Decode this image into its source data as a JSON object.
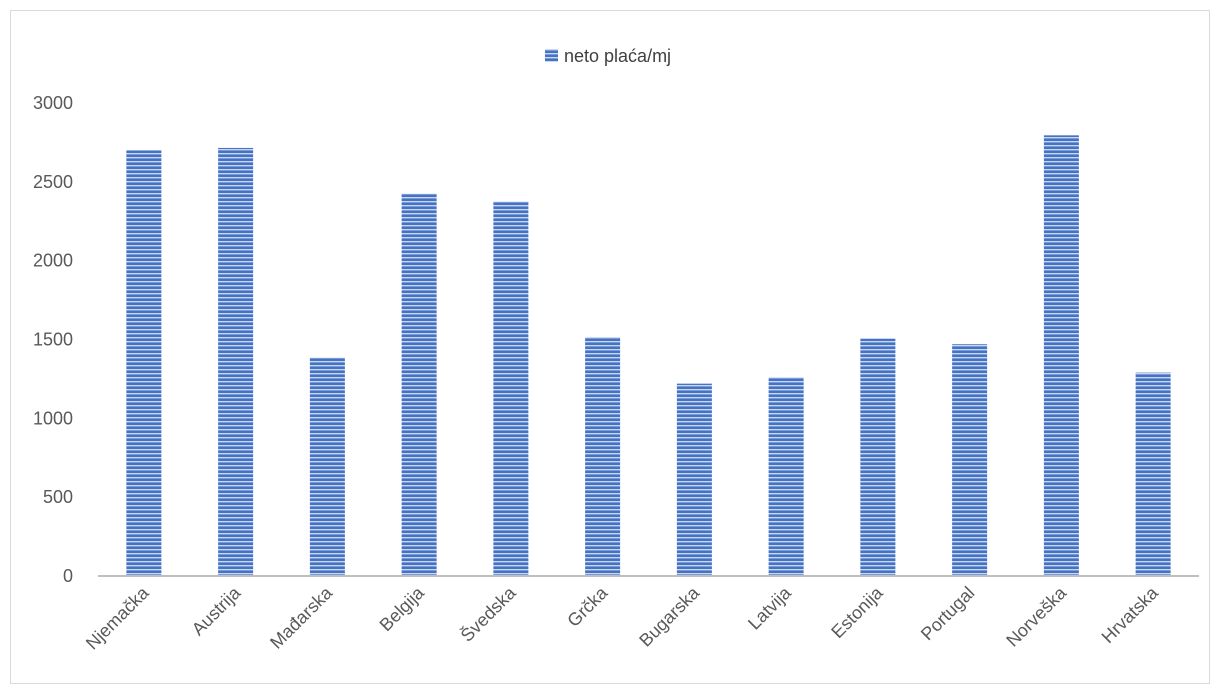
{
  "chart_data": {
    "type": "bar",
    "legend": {
      "label": "neto plaća/mj",
      "position": "top"
    },
    "categories": [
      "Njemačka",
      "Austrija",
      "Mađarska",
      "Belgija",
      "Švedska",
      "Grčka",
      "Bugarska",
      "Latvija",
      "Estonija",
      "Portugal",
      "Norveška",
      "Hrvatska"
    ],
    "series": [
      {
        "name": "neto plaća/mj",
        "values": [
          2700,
          2715,
          1385,
          2425,
          2375,
          1515,
          1220,
          1260,
          1505,
          1470,
          2795,
          1290
        ]
      }
    ],
    "yticks": [
      "0",
      "500",
      "1000",
      "1500",
      "2000",
      "2500",
      "3000"
    ],
    "ylim": [
      0,
      3000
    ],
    "grid": false,
    "colors": {
      "bar_fill": "#4472c4",
      "bar_stripe": "#c9d7ef",
      "axis": "#bfbfbf"
    }
  }
}
